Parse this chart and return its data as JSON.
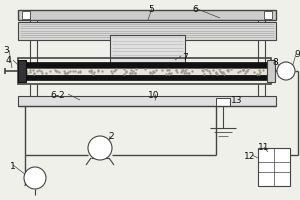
{
  "bg_color": "#f0f0eb",
  "line_color": "#444444",
  "dark_color": "#111111",
  "light_gray": "#cccccc",
  "dark_gray": "#888888",
  "white": "#ffffff",
  "fontsize": 6.5,
  "fig_w": 3.0,
  "fig_h": 2.0,
  "dpi": 100
}
